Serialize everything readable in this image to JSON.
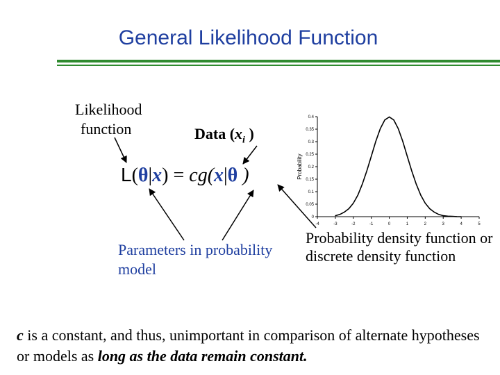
{
  "title": "General Likelihood Function",
  "labels": {
    "likelihood_line1": "Likelihood",
    "likelihood_line2": "function",
    "data_prefix": "Data (",
    "data_var": "x",
    "data_sub": "i",
    "data_suffix": " )",
    "params_line1": "Parameters in probability",
    "params_line2": "model",
    "pdf_line1": "Probability density function or",
    "pdf_line2": "discrete density function"
  },
  "formula": {
    "L": "L",
    "open": "(",
    "theta1": "θ",
    "bar1": "|",
    "x1": "x",
    "close_eq": ") = ",
    "cg": "cg(",
    "x2": "x",
    "bar2": "|",
    "theta2": "θ",
    "close": " )"
  },
  "note": {
    "c": "c",
    "part1": " is a constant, and thus, unimportant in comparison of alternate hypotheses or models as ",
    "part2": "long as the data remain constant."
  },
  "colors": {
    "title": "#1f3fa0",
    "rule": "#2f8a2f",
    "blue_text": "#1f3fa0"
  },
  "chart_data": {
    "type": "line",
    "title": "",
    "xlabel": "",
    "ylabel": "Probability",
    "xlim": [
      -4,
      5
    ],
    "ylim": [
      0,
      0.4
    ],
    "x_ticks": [
      "-4",
      "-3",
      "-2",
      "-1",
      "0",
      "1",
      "2",
      "3",
      "4",
      "5"
    ],
    "y_ticks": [
      "0",
      "0.05",
      "0.1",
      "0.15",
      "0.2",
      "0.25",
      "0.3",
      "0.35",
      "0.4"
    ],
    "grid": false,
    "series": [
      {
        "x": [
          -3,
          -2.75,
          -2.5,
          -2.25,
          -2,
          -1.75,
          -1.5,
          -1.25,
          -1,
          -0.75,
          -0.5,
          -0.25,
          0,
          0.25,
          0.5,
          0.75,
          1,
          1.25,
          1.5,
          1.75,
          2,
          2.25,
          2.5,
          2.75,
          3,
          3.25,
          3.5,
          3.75,
          4
        ],
        "values": [
          0.004,
          0.009,
          0.018,
          0.032,
          0.054,
          0.086,
          0.13,
          0.183,
          0.242,
          0.301,
          0.352,
          0.387,
          0.399,
          0.387,
          0.352,
          0.301,
          0.242,
          0.183,
          0.13,
          0.086,
          0.054,
          0.032,
          0.018,
          0.009,
          0.004,
          0.002,
          0.001,
          0.0004,
          0.0001
        ]
      }
    ]
  }
}
